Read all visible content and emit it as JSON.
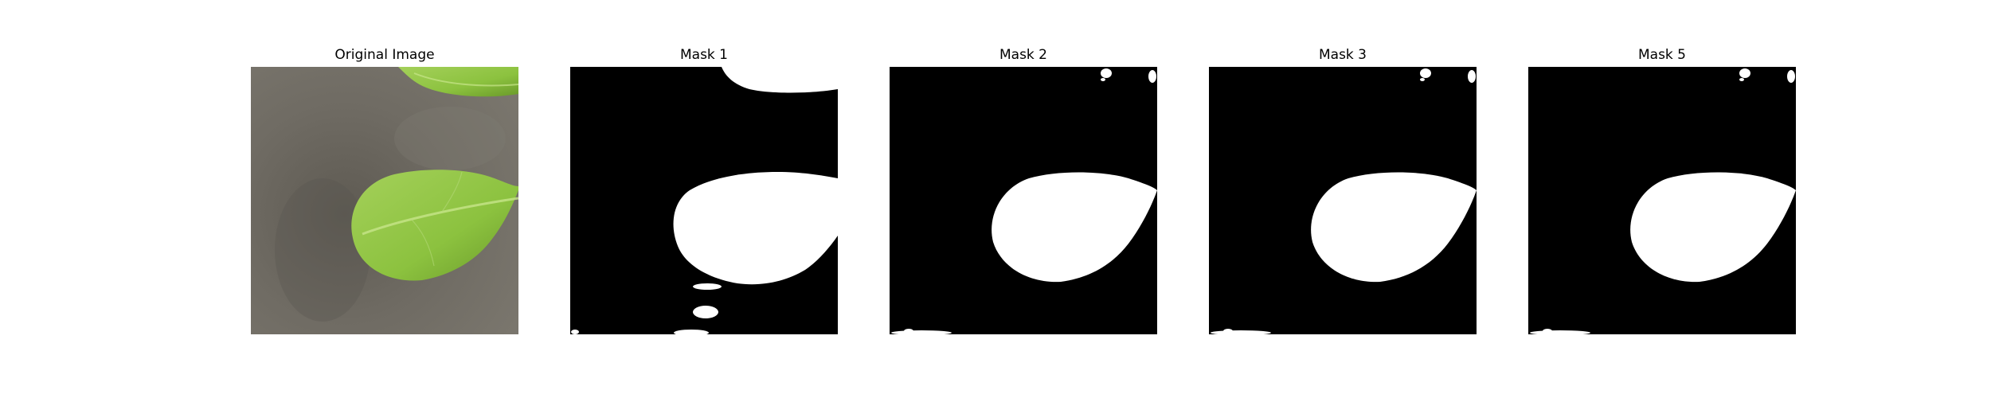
{
  "figure": {
    "panels": [
      {
        "title": "Original Image",
        "kind": "photo"
      },
      {
        "title": "Mask 1",
        "kind": "mask"
      },
      {
        "title": "Mask 2",
        "kind": "mask"
      },
      {
        "title": "Mask 3",
        "kind": "mask"
      },
      {
        "title": "Mask 5",
        "kind": "mask"
      }
    ]
  },
  "colors": {
    "background": "#ffffff",
    "mask_background": "#000000",
    "mask_foreground": "#ffffff",
    "soil": "#6f6b63",
    "leaf": "#8cc23f",
    "leaf_dark": "#6a9a2a",
    "leaf_vein": "#c7e58a"
  }
}
